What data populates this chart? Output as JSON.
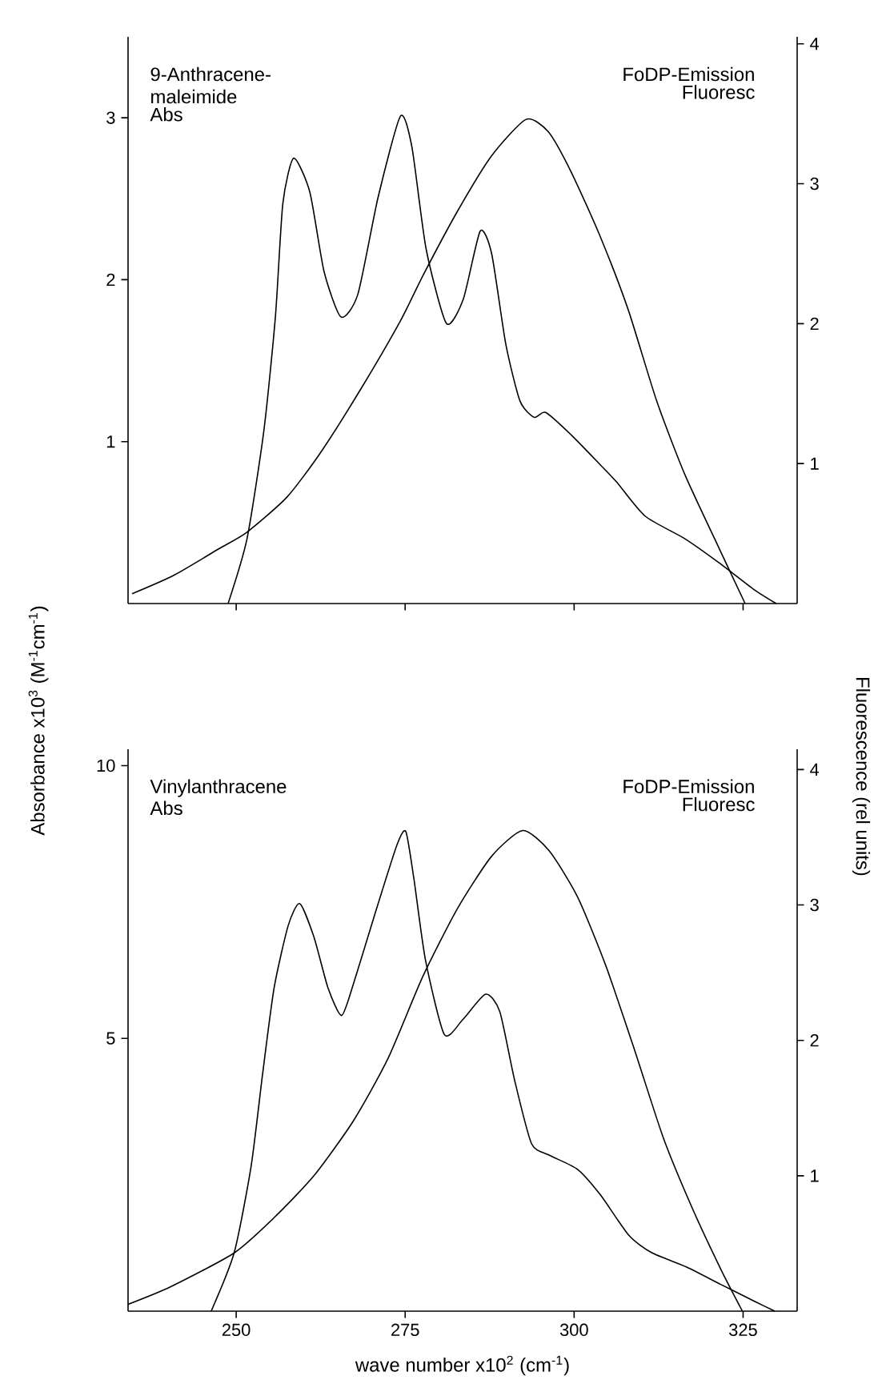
{
  "chart_data": [
    {
      "type": "line",
      "ylabel": "Absorbance x10$^{3}$ (M$^{-1}$cm$^{-1}$)",
      "y2label": "Fluorescence (rel units)",
      "annotations": [
        "9-Anthracene-maleimide",
        "Abs",
        "FoDP-Emission",
        "Fluoresc"
      ],
      "xlim": [
        234,
        333
      ],
      "xticks": [
        250,
        275,
        300,
        325
      ],
      "ylim": [
        0,
        3.5
      ],
      "yticks": [
        1,
        2,
        3
      ],
      "y2lim": [
        0,
        4.05
      ],
      "y2ticks": [
        1,
        2,
        3,
        4
      ],
      "tick_labels": "y",
      "marker": "none",
      "series": [
        {
          "color": "#000000",
          "x": [
            248.8,
            251.6,
            254.1,
            255.8,
            256.9,
            258.5,
            260.9,
            263.0,
            265.5,
            268.0,
            271.0,
            274.3,
            276.0,
            278.1,
            281.1,
            283.6,
            286.1,
            287.8,
            289.9,
            292.0,
            294.1,
            295.8,
            299.6,
            303.8,
            306.3,
            310.5,
            316.4,
            321.5,
            326.5,
            329.9
          ],
          "values": [
            0,
            0.4,
            1.07,
            1.77,
            2.47,
            2.75,
            2.54,
            2.05,
            1.77,
            1.91,
            2.51,
            3.01,
            2.82,
            2.19,
            1.73,
            1.88,
            2.3,
            2.16,
            1.6,
            1.25,
            1.15,
            1.18,
            1.04,
            0.86,
            0.75,
            0.54,
            0.4,
            0.25,
            0.09,
            0
          ]
        },
        {
          "color": "#000000",
          "axis": "y2",
          "x": [
            234.6,
            240.7,
            247.4,
            251.6,
            257.5,
            262.5,
            268.4,
            274.3,
            277.7,
            282.7,
            287.8,
            292.9,
            296.2,
            299.6,
            303.8,
            308.0,
            312.2,
            316.4,
            321.5,
            325.3
          ],
          "values": [
            0.07,
            0.2,
            0.39,
            0.51,
            0.76,
            1.08,
            1.53,
            2.02,
            2.35,
            2.8,
            3.2,
            3.46,
            3.37,
            3.08,
            2.63,
            2.1,
            1.45,
            0.92,
            0.39,
            0
          ]
        }
      ]
    },
    {
      "type": "line",
      "xlabel": "wave number x10$^{2}$ (cm$^{-1}$)",
      "annotations": [
        "Vinylanthracene",
        "Abs",
        "FoDP-Emission",
        "Fluoresc"
      ],
      "xlim": [
        234,
        333
      ],
      "xticks": [
        250,
        275,
        300,
        325
      ],
      "ylim": [
        0,
        10.3
      ],
      "yticks": [
        5,
        10
      ],
      "y2lim": [
        0,
        4.15
      ],
      "y2ticks": [
        1,
        2,
        3,
        4
      ],
      "marker": "none",
      "series": [
        {
          "color": "#000000",
          "x": [
            246.3,
            249.7,
            252.2,
            253.9,
            255.6,
            257.7,
            259.4,
            261.5,
            263.6,
            265.6,
            267.4,
            270.8,
            273.8,
            275.1,
            276.3,
            278.0,
            280.8,
            283.5,
            286.9,
            289.0,
            291.2,
            293.7,
            296.3,
            300.5,
            303.9,
            308.1,
            311.5,
            316.6,
            321.7,
            326.7,
            329.7
          ],
          "values": [
            0,
            1.07,
            2.65,
            4.34,
            5.92,
            7.07,
            7.47,
            6.86,
            5.92,
            5.42,
            6.02,
            7.39,
            8.55,
            8.79,
            7.92,
            6.44,
            5.07,
            5.34,
            5.81,
            5.49,
            4.23,
            3.07,
            2.86,
            2.6,
            2.13,
            1.39,
            1.07,
            0.81,
            0.49,
            0.18,
            0
          ]
        },
        {
          "color": "#000000",
          "axis": "y2",
          "x": [
            234,
            240.3,
            249.7,
            255.6,
            261.5,
            267.4,
            272.5,
            277.6,
            282.7,
            287.8,
            292.4,
            296.3,
            300.5,
            304.7,
            309.0,
            313.2,
            317.4,
            321.7,
            324.9
          ],
          "values": [
            0.05,
            0.18,
            0.43,
            0.69,
            1.0,
            1.41,
            1.87,
            2.47,
            2.97,
            3.36,
            3.55,
            3.4,
            3.06,
            2.55,
            1.92,
            1.28,
            0.77,
            0.31,
            0
          ]
        }
      ]
    }
  ]
}
